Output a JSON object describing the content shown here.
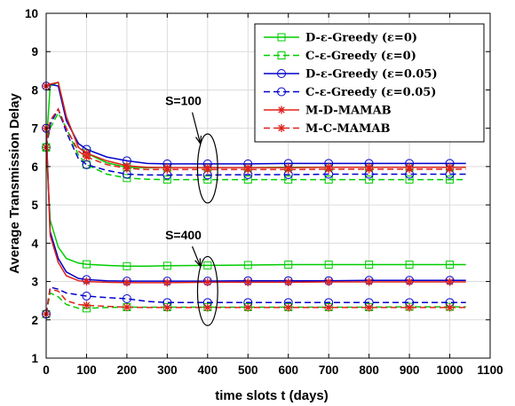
{
  "chart_data": {
    "type": "line",
    "xlabel": "time slots t (days)",
    "ylabel": "Average Transmission Delay",
    "xlim": [
      0,
      1100
    ],
    "ylim": [
      1,
      10
    ],
    "xticks": [
      "0",
      "100",
      "200",
      "300",
      "400",
      "500",
      "600",
      "700",
      "800",
      "900",
      "1000",
      "1100"
    ],
    "yticks": [
      "1",
      "2",
      "3",
      "4",
      "5",
      "6",
      "7",
      "8",
      "9",
      "10"
    ],
    "grid": true,
    "legend_position": "top-right",
    "legend": [
      {
        "label": "D-ε-Greedy (ε=0)",
        "color": "#00cc00",
        "dash": "solid",
        "marker": "square"
      },
      {
        "label": "C-ε-Greedy (ε=0)",
        "color": "#00cc00",
        "dash": "dashed",
        "marker": "square"
      },
      {
        "label": "D-ε-Greedy (ε=0.05)",
        "color": "#0000cc",
        "dash": "solid",
        "marker": "circle"
      },
      {
        "label": "C-ε-Greedy (ε=0.05)",
        "color": "#0000cc",
        "dash": "dashed",
        "marker": "circle"
      },
      {
        "label": "M-D-MAMAB",
        "color": "#e0201b",
        "dash": "solid",
        "marker": "star"
      },
      {
        "label": "M-C-MAMAB",
        "color": "#e0201b",
        "dash": "dashed",
        "marker": "star"
      }
    ],
    "annotations": [
      {
        "text": "S=100",
        "x": 340,
        "y": 7.6,
        "ellipse_cx": 400,
        "ellipse_cy": 5.95,
        "ellipse_rx": 25,
        "ellipse_ry": 0.9
      },
      {
        "text": "S=400",
        "x": 340,
        "y": 4.1,
        "ellipse_cx": 400,
        "ellipse_cy": 2.75,
        "ellipse_rx": 25,
        "ellipse_ry": 0.9
      }
    ],
    "series": [
      {
        "name": "D-ε-Greedy (ε=0)",
        "group": "S=100",
        "color": "#00cc00",
        "dash": "solid",
        "marker": "square",
        "x": [
          0,
          10,
          30,
          50,
          80,
          100,
          150,
          200,
          250,
          300,
          400,
          500,
          600,
          700,
          800,
          900,
          1000,
          1040
        ],
        "y": [
          6.5,
          8.1,
          8.2,
          7.3,
          6.5,
          6.35,
          6.1,
          5.98,
          5.97,
          5.97,
          5.97,
          5.97,
          5.98,
          5.98,
          5.98,
          5.98,
          5.98,
          5.98
        ]
      },
      {
        "name": "C-ε-Greedy (ε=0)",
        "group": "S=100",
        "color": "#00cc00",
        "dash": "dashed",
        "marker": "square",
        "x": [
          0,
          10,
          30,
          50,
          80,
          100,
          150,
          200,
          250,
          300,
          400,
          500,
          600,
          700,
          800,
          900,
          1000,
          1040
        ],
        "y": [
          6.5,
          7.0,
          7.4,
          7.0,
          6.3,
          6.05,
          5.8,
          5.7,
          5.67,
          5.66,
          5.66,
          5.66,
          5.66,
          5.66,
          5.66,
          5.66,
          5.66,
          5.66
        ]
      },
      {
        "name": "D-ε-Greedy (ε=0.05)",
        "group": "S=100",
        "color": "#0000cc",
        "dash": "solid",
        "marker": "circle",
        "x": [
          0,
          10,
          30,
          50,
          80,
          100,
          150,
          200,
          250,
          300,
          400,
          500,
          600,
          700,
          800,
          900,
          1000,
          1040
        ],
        "y": [
          8.1,
          8.15,
          8.1,
          7.2,
          6.6,
          6.45,
          6.25,
          6.15,
          6.08,
          6.07,
          6.07,
          6.07,
          6.08,
          6.08,
          6.08,
          6.08,
          6.08,
          6.08
        ]
      },
      {
        "name": "C-ε-Greedy (ε=0.05)",
        "group": "S=100",
        "color": "#0000cc",
        "dash": "dashed",
        "marker": "circle",
        "x": [
          0,
          10,
          30,
          50,
          80,
          100,
          150,
          200,
          250,
          300,
          400,
          500,
          600,
          700,
          800,
          900,
          1000,
          1040
        ],
        "y": [
          6.5,
          7.1,
          7.5,
          6.9,
          6.2,
          6.05,
          5.9,
          5.8,
          5.78,
          5.78,
          5.78,
          5.79,
          5.79,
          5.8,
          5.8,
          5.8,
          5.8,
          5.8
        ]
      },
      {
        "name": "M-D-MAMAB",
        "group": "S=100",
        "color": "#e0201b",
        "dash": "solid",
        "marker": "star",
        "x": [
          0,
          10,
          30,
          50,
          80,
          100,
          150,
          200,
          250,
          300,
          400,
          500,
          600,
          700,
          800,
          900,
          1000,
          1040
        ],
        "y": [
          8.1,
          8.15,
          8.2,
          7.3,
          6.5,
          6.35,
          6.15,
          6.02,
          5.98,
          5.97,
          5.97,
          5.97,
          5.97,
          5.98,
          5.98,
          5.98,
          5.98,
          5.98
        ]
      },
      {
        "name": "M-C-MAMAB",
        "group": "S=100",
        "color": "#e0201b",
        "dash": "dashed",
        "marker": "star",
        "x": [
          0,
          10,
          30,
          50,
          80,
          100,
          150,
          200,
          250,
          300,
          400,
          500,
          600,
          700,
          800,
          900,
          1000,
          1040
        ],
        "y": [
          6.5,
          7.2,
          7.5,
          7.0,
          6.4,
          6.25,
          6.05,
          5.95,
          5.92,
          5.92,
          5.92,
          5.92,
          5.92,
          5.93,
          5.93,
          5.93,
          5.93,
          5.93
        ]
      },
      {
        "name": "D-ε-Greedy (ε=0)",
        "group": "S=400",
        "color": "#00cc00",
        "dash": "solid",
        "marker": "square",
        "x": [
          0,
          10,
          30,
          50,
          80,
          100,
          150,
          200,
          250,
          300,
          400,
          500,
          600,
          700,
          800,
          900,
          1000,
          1040
        ],
        "y": [
          6.5,
          4.6,
          3.9,
          3.6,
          3.48,
          3.45,
          3.42,
          3.4,
          3.4,
          3.41,
          3.42,
          3.43,
          3.44,
          3.44,
          3.44,
          3.44,
          3.44,
          3.44
        ]
      },
      {
        "name": "C-ε-Greedy (ε=0)",
        "group": "S=400",
        "color": "#00cc00",
        "dash": "dashed",
        "marker": "square",
        "x": [
          0,
          10,
          30,
          50,
          80,
          100,
          150,
          200,
          250,
          300,
          400,
          500,
          600,
          700,
          800,
          900,
          1000,
          1040
        ],
        "y": [
          2.15,
          2.7,
          2.6,
          2.4,
          2.3,
          2.3,
          2.32,
          2.33,
          2.33,
          2.33,
          2.33,
          2.33,
          2.33,
          2.33,
          2.33,
          2.34,
          2.34,
          2.34
        ]
      },
      {
        "name": "D-ε-Greedy (ε=0.05)",
        "group": "S=400",
        "color": "#0000cc",
        "dash": "solid",
        "marker": "circle",
        "x": [
          0,
          10,
          30,
          50,
          80,
          100,
          150,
          200,
          250,
          300,
          400,
          500,
          600,
          700,
          800,
          900,
          1000,
          1040
        ],
        "y": [
          7.0,
          4.3,
          3.6,
          3.25,
          3.08,
          3.05,
          3.02,
          3.01,
          3.01,
          3.01,
          3.01,
          3.02,
          3.02,
          3.02,
          3.03,
          3.03,
          3.03,
          3.03
        ]
      },
      {
        "name": "C-ε-Greedy (ε=0.05)",
        "group": "S=400",
        "color": "#0000cc",
        "dash": "dashed",
        "marker": "circle",
        "x": [
          0,
          10,
          30,
          50,
          80,
          100,
          150,
          200,
          250,
          300,
          400,
          500,
          600,
          700,
          800,
          900,
          1000,
          1040
        ],
        "y": [
          2.15,
          2.85,
          2.8,
          2.7,
          2.65,
          2.62,
          2.58,
          2.55,
          2.48,
          2.45,
          2.45,
          2.45,
          2.45,
          2.45,
          2.45,
          2.45,
          2.45,
          2.45
        ]
      },
      {
        "name": "M-D-MAMAB",
        "group": "S=400",
        "color": "#e0201b",
        "dash": "solid",
        "marker": "star",
        "x": [
          0,
          10,
          30,
          50,
          80,
          100,
          150,
          200,
          250,
          300,
          400,
          500,
          600,
          700,
          800,
          900,
          1000,
          1040
        ],
        "y": [
          7.0,
          4.2,
          3.5,
          3.15,
          3.02,
          3.0,
          2.98,
          2.97,
          2.97,
          2.97,
          2.98,
          2.98,
          2.98,
          2.99,
          2.99,
          2.99,
          2.99,
          2.99
        ]
      },
      {
        "name": "M-C-MAMAB",
        "group": "S=400",
        "color": "#e0201b",
        "dash": "dashed",
        "marker": "star",
        "x": [
          0,
          10,
          30,
          50,
          80,
          100,
          150,
          200,
          250,
          300,
          400,
          500,
          600,
          700,
          800,
          900,
          1000,
          1040
        ],
        "y": [
          2.15,
          2.8,
          2.75,
          2.5,
          2.4,
          2.38,
          2.35,
          2.33,
          2.32,
          2.32,
          2.32,
          2.32,
          2.32,
          2.32,
          2.32,
          2.32,
          2.32,
          2.32
        ]
      }
    ]
  }
}
